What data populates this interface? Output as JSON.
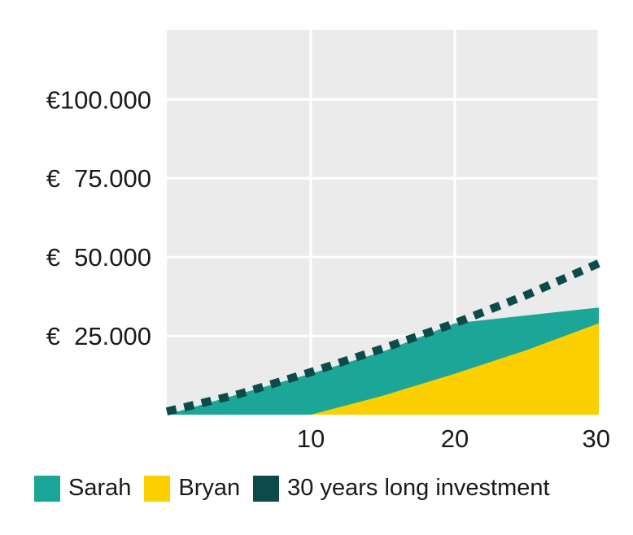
{
  "chart_data": {
    "type": "area",
    "title": "",
    "xlabel": "",
    "ylabel": "",
    "x_ticks": [
      "10",
      "20",
      "30"
    ],
    "y_ticks": [
      "€  25.000",
      "€  50.000",
      "€  75.000",
      "€100.000"
    ],
    "xlim": [
      0,
      30
    ],
    "ylim": [
      0,
      122000
    ],
    "grid": true,
    "legend_position": "bottom",
    "series": [
      {
        "name": "Sarah",
        "kind": "area",
        "color": "#1ba697",
        "x": [
          0,
          5,
          10,
          15,
          20,
          25,
          30
        ],
        "y": [
          0,
          6500,
          13000,
          20000,
          29000,
          31500,
          34000
        ]
      },
      {
        "name": "Bryan",
        "kind": "area",
        "color": "#fcd000",
        "x": [
          0,
          10,
          15,
          20,
          25,
          30
        ],
        "y": [
          0,
          0,
          6000,
          13000,
          20500,
          29000
        ]
      },
      {
        "name": "30 years long investment",
        "kind": "dotted-line",
        "color": "#0d4b4a",
        "x": [
          0,
          5,
          10,
          15,
          20,
          25,
          30
        ],
        "y": [
          1000,
          6500,
          13500,
          21000,
          29000,
          38000,
          48000
        ]
      }
    ]
  },
  "legend": {
    "sarah": "Sarah",
    "bryan": "Bryan",
    "investment": "30 years long investment"
  }
}
